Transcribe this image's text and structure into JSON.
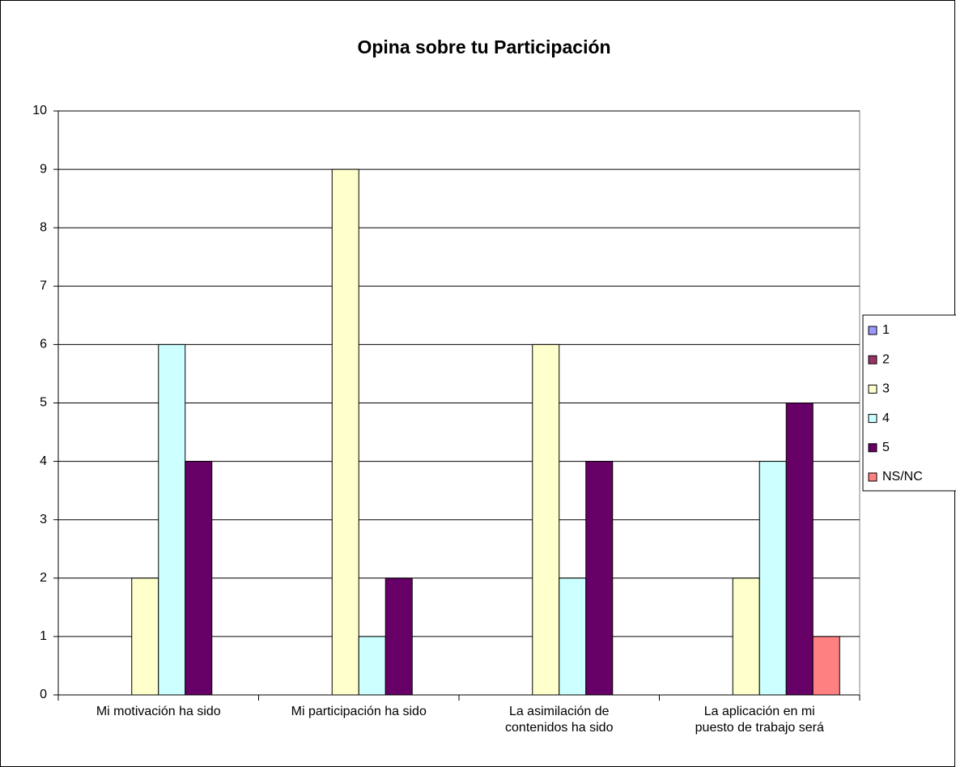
{
  "chart_data": {
    "type": "bar",
    "title": "Opina sobre tu Participación",
    "categories": [
      "Mi motivación ha sido",
      "Mi participación ha sido",
      "La asimilación de contenidos ha sido",
      "La aplicación en mi puesto de trabajo será"
    ],
    "series": [
      {
        "name": "1",
        "color": "#9999ff",
        "values": [
          0,
          0,
          0,
          0
        ]
      },
      {
        "name": "2",
        "color": "#993366",
        "values": [
          0,
          0,
          0,
          0
        ]
      },
      {
        "name": "3",
        "color": "#ffffcc",
        "values": [
          2,
          9,
          6,
          2
        ]
      },
      {
        "name": "4",
        "color": "#ccffff",
        "values": [
          6,
          1,
          2,
          4
        ]
      },
      {
        "name": "5",
        "color": "#660066",
        "values": [
          4,
          2,
          4,
          5
        ]
      },
      {
        "name": "NS/NC",
        "color": "#ff8080",
        "values": [
          0,
          0,
          0,
          1
        ]
      }
    ],
    "ylim": [
      0,
      10
    ],
    "yticks": [
      0,
      1,
      2,
      3,
      4,
      5,
      6,
      7,
      8,
      9,
      10
    ],
    "grid": true,
    "legend": "right"
  }
}
